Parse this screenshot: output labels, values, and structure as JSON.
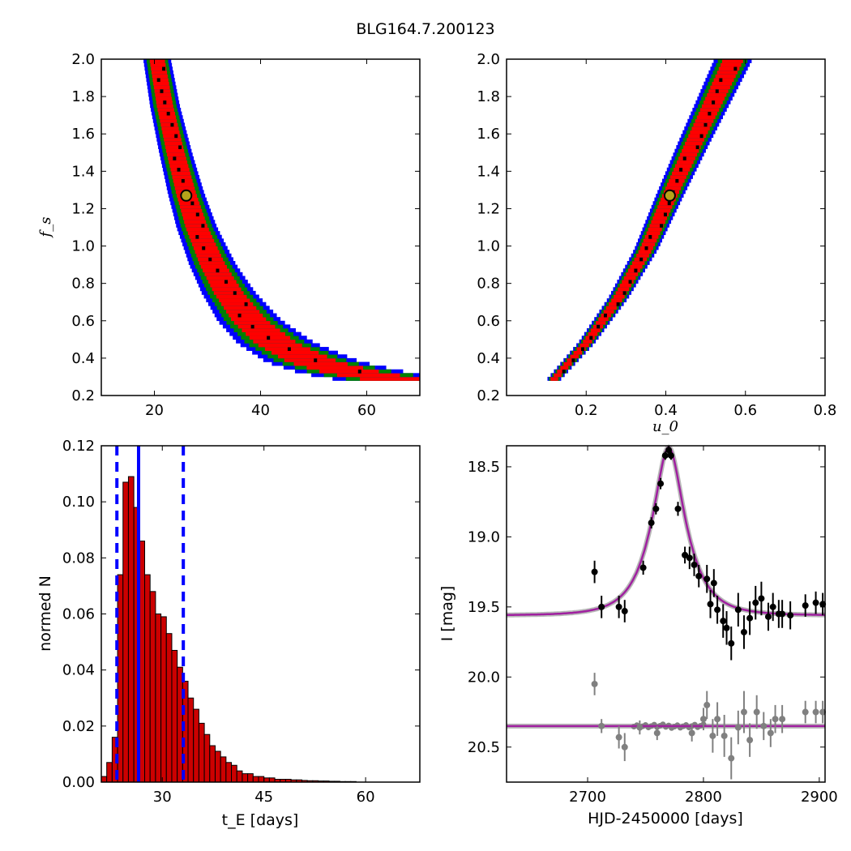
{
  "title": "BLG164.7.200123",
  "chart_data": [
    {
      "type": "heatmap",
      "panel": "tE vs fs posterior",
      "xlabel": "",
      "ylabel": "f_s",
      "xlim": [
        10,
        70
      ],
      "ylim": [
        0.2,
        2.0
      ],
      "xticks": [
        20,
        40,
        60
      ],
      "yticks": [
        0.2,
        0.4,
        0.6,
        0.8,
        1.0,
        1.2,
        1.4,
        1.6,
        1.8,
        2.0
      ],
      "levels": [
        "blue",
        "green",
        "red",
        "black"
      ],
      "colors": {
        "blue": "#0000ff",
        "green": "#008000",
        "red": "#ff0000",
        "black": "#000000"
      },
      "ridge": {
        "x": [
          20.5,
          22,
          24,
          26,
          28,
          31,
          34,
          38,
          43,
          50,
          58,
          65
        ],
        "y": [
          2.0,
          1.75,
          1.5,
          1.28,
          1.1,
          0.9,
          0.75,
          0.6,
          0.48,
          0.38,
          0.32,
          0.29
        ]
      },
      "best_fit": {
        "x": 26,
        "y": 1.27
      }
    },
    {
      "type": "heatmap",
      "panel": "u0 vs fs posterior",
      "xlabel": "u_0",
      "ylabel": "",
      "xlim": [
        0.0,
        0.8
      ],
      "ylim": [
        0.2,
        2.0
      ],
      "xticks": [
        0.2,
        0.4,
        0.6,
        0.8
      ],
      "yticks": [
        0.2,
        0.4,
        0.6,
        0.8,
        1.0,
        1.2,
        1.4,
        1.6,
        1.8,
        2.0
      ],
      "levels": [
        "blue",
        "green",
        "red",
        "black"
      ],
      "ridge": {
        "x": [
          0.12,
          0.2,
          0.28,
          0.35,
          0.41,
          0.47,
          0.53,
          0.57
        ],
        "y": [
          0.29,
          0.48,
          0.72,
          0.98,
          1.27,
          1.55,
          1.82,
          2.0
        ]
      },
      "best_fit": {
        "x": 0.41,
        "y": 1.27
      }
    },
    {
      "type": "bar",
      "panel": "tE histogram",
      "xlabel": "t_E [days]",
      "ylabel": "normed N",
      "xlim": [
        21,
        68
      ],
      "ylim": [
        0.0,
        0.12
      ],
      "xticks": [
        30,
        45,
        60
      ],
      "yticks": [
        0.0,
        0.02,
        0.04,
        0.06,
        0.08,
        0.1,
        0.12
      ],
      "bin_start": 21.0,
      "bin_width": 0.8,
      "values": [
        0.002,
        0.007,
        0.016,
        0.074,
        0.107,
        0.109,
        0.098,
        0.086,
        0.074,
        0.068,
        0.06,
        0.059,
        0.053,
        0.047,
        0.041,
        0.036,
        0.03,
        0.026,
        0.021,
        0.017,
        0.013,
        0.011,
        0.009,
        0.007,
        0.006,
        0.004,
        0.003,
        0.003,
        0.002,
        0.002,
        0.0015,
        0.0015,
        0.001,
        0.001,
        0.001,
        0.0008,
        0.0008,
        0.0006,
        0.0005,
        0.0005,
        0.0004,
        0.0004,
        0.0003,
        0.0003,
        0.0002,
        0.0002,
        0.0002
      ],
      "bar_color": "#cc0000",
      "median": 26.5,
      "lower": 23.3,
      "upper": 33.1,
      "line_color": "#0000ff"
    },
    {
      "type": "scatter",
      "panel": "light curve",
      "xlabel": "HJD-2450000 [days]",
      "ylabel": "I [mag]",
      "xlim": [
        2630,
        2905
      ],
      "ylim": [
        20.75,
        18.35
      ],
      "xticks": [
        2700,
        2800,
        2900
      ],
      "yticks": [
        18.5,
        19.0,
        19.5,
        20.0,
        20.5
      ],
      "model": {
        "t0": 2770,
        "tE": 26,
        "u0": 0.41,
        "baseline": 19.56,
        "fs": 1.27,
        "color": "#a020a0"
      },
      "residual_offset": 20.35,
      "data": [
        [
          2706,
          19.25,
          0.08
        ],
        [
          2712,
          19.5,
          0.08
        ],
        [
          2727,
          19.5,
          0.08
        ],
        [
          2732,
          19.53,
          0.08
        ],
        [
          2748,
          19.22,
          0.05
        ],
        [
          2755,
          18.9,
          0.04
        ],
        [
          2759,
          18.8,
          0.04
        ],
        [
          2763,
          18.62,
          0.04
        ],
        [
          2767,
          18.42,
          0.03
        ],
        [
          2770,
          18.38,
          0.03
        ],
        [
          2772,
          18.42,
          0.03
        ],
        [
          2778,
          18.8,
          0.05
        ],
        [
          2784,
          19.13,
          0.06
        ],
        [
          2788,
          19.15,
          0.08
        ],
        [
          2792,
          19.2,
          0.08
        ],
        [
          2796,
          19.28,
          0.08
        ],
        [
          2803,
          19.3,
          0.1
        ],
        [
          2806,
          19.48,
          0.1
        ],
        [
          2809,
          19.33,
          0.1
        ],
        [
          2812,
          19.52,
          0.1
        ],
        [
          2817,
          19.6,
          0.12
        ],
        [
          2820,
          19.65,
          0.12
        ],
        [
          2824,
          19.76,
          0.12
        ],
        [
          2830,
          19.52,
          0.12
        ],
        [
          2835,
          19.68,
          0.12
        ],
        [
          2840,
          19.58,
          0.12
        ],
        [
          2845,
          19.47,
          0.12
        ],
        [
          2850,
          19.44,
          0.12
        ],
        [
          2856,
          19.57,
          0.1
        ],
        [
          2860,
          19.5,
          0.1
        ],
        [
          2865,
          19.55,
          0.1
        ],
        [
          2868,
          19.55,
          0.1
        ],
        [
          2875,
          19.56,
          0.1
        ],
        [
          2888,
          19.49,
          0.08
        ],
        [
          2897,
          19.47,
          0.08
        ],
        [
          2903,
          19.48,
          0.08
        ]
      ],
      "residuals": [
        [
          2706,
          20.05,
          0.08
        ],
        [
          2712,
          20.35,
          0.05
        ],
        [
          2727,
          20.43,
          0.08
        ],
        [
          2732,
          20.5,
          0.1
        ],
        [
          2745,
          20.36,
          0.05
        ],
        [
          2760,
          20.4,
          0.05
        ],
        [
          2790,
          20.4,
          0.06
        ],
        [
          2800,
          20.3,
          0.08
        ],
        [
          2803,
          20.2,
          0.1
        ],
        [
          2808,
          20.42,
          0.12
        ],
        [
          2812,
          20.3,
          0.12
        ],
        [
          2818,
          20.42,
          0.15
        ],
        [
          2824,
          20.58,
          0.15
        ],
        [
          2830,
          20.36,
          0.12
        ],
        [
          2835,
          20.25,
          0.15
        ],
        [
          2840,
          20.45,
          0.12
        ],
        [
          2846,
          20.25,
          0.12
        ],
        [
          2852,
          20.35,
          0.1
        ],
        [
          2858,
          20.4,
          0.1
        ],
        [
          2862,
          20.3,
          0.1
        ],
        [
          2868,
          20.3,
          0.1
        ],
        [
          2888,
          20.25,
          0.08
        ],
        [
          2897,
          20.25,
          0.08
        ],
        [
          2903,
          20.25,
          0.08
        ]
      ],
      "data_color": "#000000",
      "residual_color": "#808080"
    }
  ]
}
